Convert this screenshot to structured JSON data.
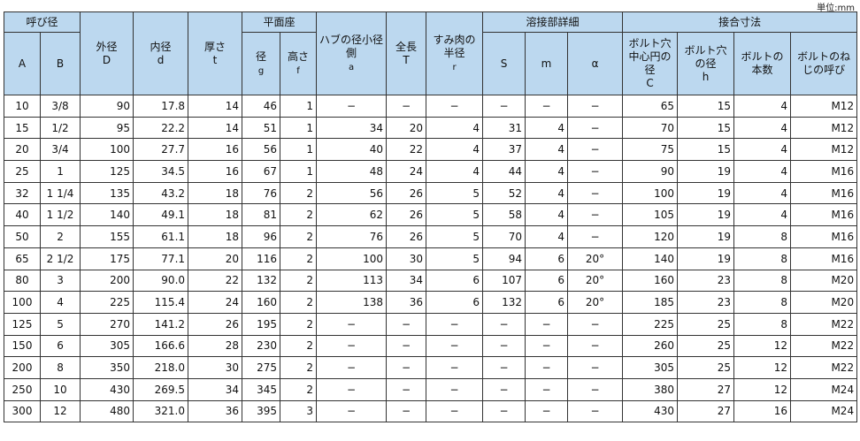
{
  "unit": "単位:mm",
  "header": {
    "nominal": "呼び径",
    "A": "A",
    "B": "B",
    "outer": "外径",
    "outer_sym": "D",
    "inner": "内径",
    "inner_sym": "d",
    "thick": "厚さ",
    "thick_sym": "t",
    "face": "平面座",
    "face_dia": "径",
    "face_dia_sym": "g",
    "face_h": "高さ",
    "face_h_sym": "f",
    "hub": "ハブの径小径側",
    "hub_sym": "a",
    "length": "全長",
    "length_sym": "T",
    "fillet": "すみ肉の半径",
    "fillet_sym": "r",
    "weld": "溶接部詳細",
    "S": "S",
    "m": "m",
    "alpha": "α",
    "joint": "接合寸法",
    "pcd": "ボルト穴中心円の径",
    "pcd_sym": "C",
    "hole": "ボルト穴の径",
    "hole_sym": "h",
    "count": "ボルトの本数",
    "thread": "ボルトのねじの呼び"
  },
  "rows": [
    [
      "10",
      "3/8",
      "90",
      "17.8",
      "14",
      "46",
      "1",
      "−",
      "−",
      "−",
      "−",
      "−",
      "−",
      "65",
      "15",
      "4",
      "M12"
    ],
    [
      "15",
      "1/2",
      "95",
      "22.2",
      "14",
      "51",
      "1",
      "34",
      "20",
      "4",
      "31",
      "4",
      "−",
      "70",
      "15",
      "4",
      "M12"
    ],
    [
      "20",
      "3/4",
      "100",
      "27.7",
      "16",
      "56",
      "1",
      "40",
      "22",
      "4",
      "37",
      "4",
      "−",
      "75",
      "15",
      "4",
      "M12"
    ],
    [
      "25",
      "1",
      "125",
      "34.5",
      "16",
      "67",
      "1",
      "48",
      "24",
      "4",
      "44",
      "4",
      "−",
      "90",
      "19",
      "4",
      "M16"
    ],
    [
      "32",
      "1 1/4",
      "135",
      "43.2",
      "18",
      "76",
      "2",
      "56",
      "26",
      "5",
      "52",
      "4",
      "−",
      "100",
      "19",
      "4",
      "M16"
    ],
    [
      "40",
      "1 1/2",
      "140",
      "49.1",
      "18",
      "81",
      "2",
      "62",
      "26",
      "5",
      "58",
      "4",
      "−",
      "105",
      "19",
      "4",
      "M16"
    ],
    [
      "50",
      "2",
      "155",
      "61.1",
      "18",
      "96",
      "2",
      "76",
      "26",
      "5",
      "70",
      "4",
      "−",
      "120",
      "19",
      "8",
      "M16"
    ],
    [
      "65",
      "2 1/2",
      "175",
      "77.1",
      "20",
      "116",
      "2",
      "100",
      "30",
      "5",
      "94",
      "6",
      "20°",
      "140",
      "19",
      "8",
      "M16"
    ],
    [
      "80",
      "3",
      "200",
      "90.0",
      "22",
      "132",
      "2",
      "113",
      "34",
      "6",
      "107",
      "6",
      "20°",
      "160",
      "23",
      "8",
      "M20"
    ],
    [
      "100",
      "4",
      "225",
      "115.4",
      "24",
      "160",
      "2",
      "138",
      "36",
      "6",
      "132",
      "6",
      "20°",
      "185",
      "23",
      "8",
      "M20"
    ],
    [
      "125",
      "5",
      "270",
      "141.2",
      "26",
      "195",
      "2",
      "−",
      "−",
      "−",
      "−",
      "−",
      "−",
      "225",
      "25",
      "8",
      "M22"
    ],
    [
      "150",
      "6",
      "305",
      "166.6",
      "28",
      "230",
      "2",
      "−",
      "−",
      "−",
      "−",
      "−",
      "−",
      "260",
      "25",
      "12",
      "M22"
    ],
    [
      "200",
      "8",
      "350",
      "218.0",
      "30",
      "275",
      "2",
      "−",
      "−",
      "−",
      "−",
      "−",
      "−",
      "305",
      "25",
      "12",
      "M22"
    ],
    [
      "250",
      "10",
      "430",
      "269.5",
      "34",
      "345",
      "2",
      "−",
      "−",
      "−",
      "−",
      "−",
      "−",
      "380",
      "27",
      "12",
      "M24"
    ],
    [
      "300",
      "12",
      "480",
      "321.0",
      "36",
      "395",
      "3",
      "−",
      "−",
      "−",
      "−",
      "−",
      "−",
      "430",
      "27",
      "16",
      "M24"
    ]
  ]
}
